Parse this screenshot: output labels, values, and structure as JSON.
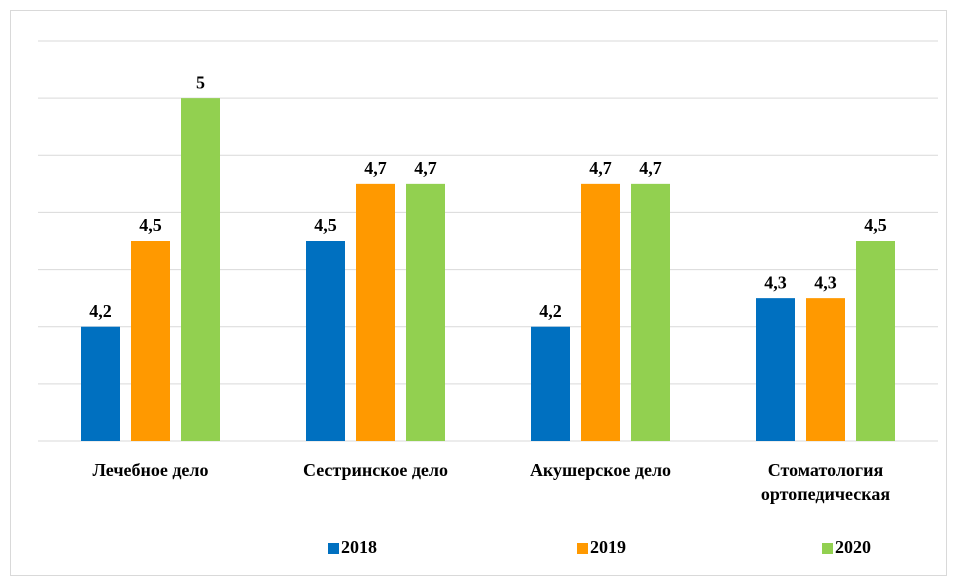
{
  "chart_data": {
    "type": "bar",
    "categories": [
      "Лечебное дело",
      "Сестринское дело",
      "Акушерское дело",
      "Стоматология ортопедическая"
    ],
    "series": [
      {
        "name": "2018",
        "color": "#0070c0",
        "values": [
          4.2,
          4.5,
          4.2,
          4.3
        ],
        "value_labels": [
          "4,2",
          "4,5",
          "4,2",
          "4,3"
        ]
      },
      {
        "name": "2019",
        "color": "#ff9900",
        "values": [
          4.5,
          4.7,
          4.7,
          4.3
        ],
        "value_labels": [
          "4,5",
          "4,7",
          "4,7",
          "4,3"
        ]
      },
      {
        "name": "2020",
        "color": "#92d050",
        "values": [
          5,
          4.7,
          4.7,
          4.5
        ],
        "value_labels": [
          "5",
          "4,7",
          "4,7",
          "4,5"
        ]
      }
    ],
    "ylim": [
      3.8,
      5.2
    ],
    "yticks": [
      3.8,
      4.0,
      4.2,
      4.4,
      4.6,
      4.8,
      5.0,
      5.2
    ],
    "grid": true,
    "legend": "bottom"
  }
}
